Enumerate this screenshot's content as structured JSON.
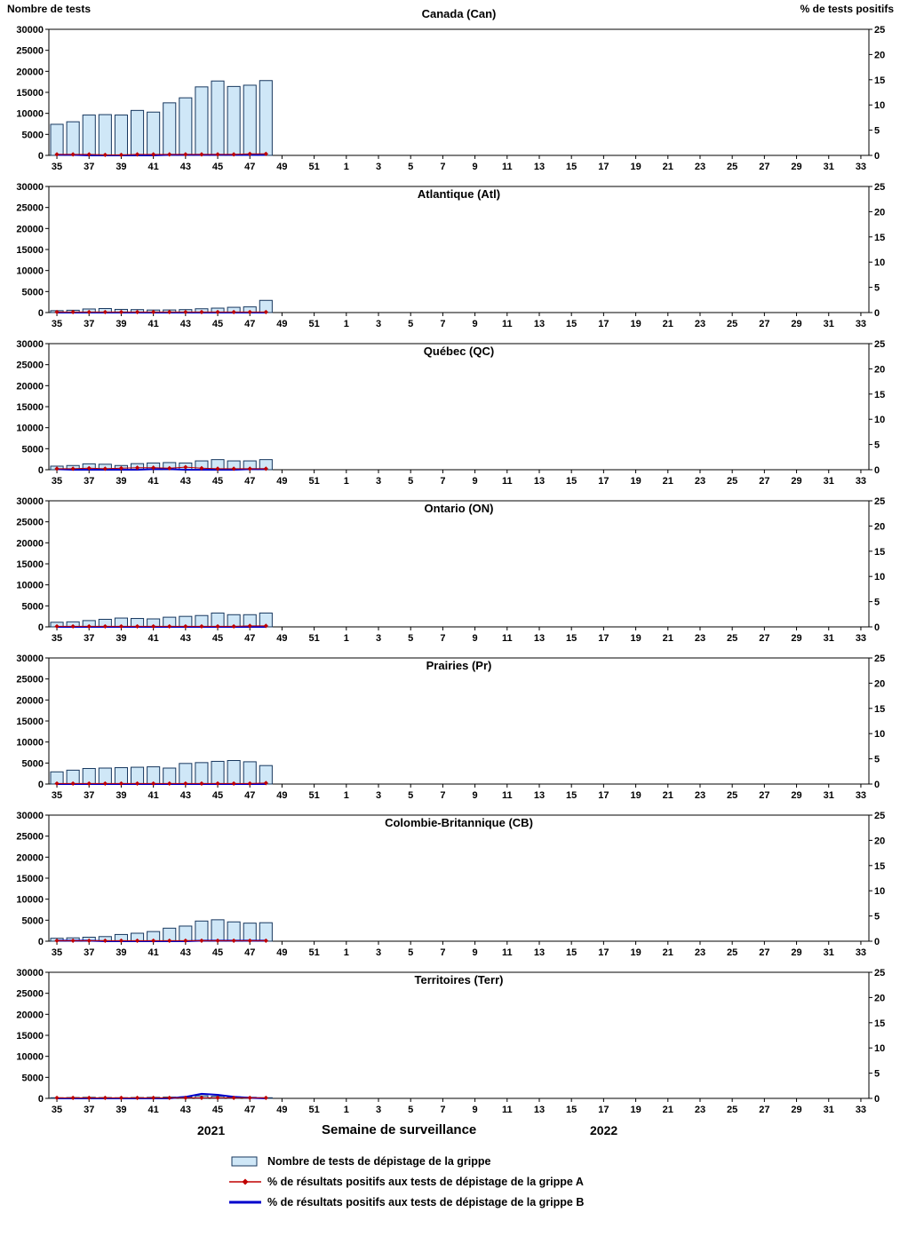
{
  "left_axis_title": "Nombre de tests",
  "right_axis_title": "% de tests positifs",
  "footer": {
    "year_left": "2021",
    "x_axis_title": "Semaine de surveillance",
    "year_right": "2022"
  },
  "colors": {
    "bar_fill": "#cfe7f7",
    "bar_border": "#17375e",
    "flu_a": "#c00000",
    "flu_b": "#0000cc",
    "axis": "#000000"
  },
  "axes": {
    "left_ticks": [
      0,
      5000,
      10000,
      15000,
      20000,
      25000,
      30000
    ],
    "left_max": 30000,
    "right_ticks": [
      0,
      5,
      10,
      15,
      20,
      25
    ],
    "right_max": 25,
    "x_tick_labels": [
      "35",
      "37",
      "39",
      "41",
      "43",
      "45",
      "47",
      "49",
      "51",
      "1",
      "3",
      "5",
      "7",
      "9",
      "11",
      "13",
      "15",
      "17",
      "19",
      "21",
      "23",
      "25",
      "27",
      "29",
      "31",
      "33"
    ],
    "n_slots": 51,
    "grid": false
  },
  "legend": [
    {
      "label": "Nombre de tests de dépistage de la grippe",
      "type": "bar"
    },
    {
      "label": "% de résultats positifs aux tests de dépistage de la grippe A",
      "type": "line-diamond"
    },
    {
      "label": "% de résultats positifs aux tests de dépistage de la grippe B",
      "type": "line"
    }
  ],
  "chart_data": [
    {
      "id": "canada",
      "type": "bar",
      "title": "Canada (Can)",
      "ylim_left": [
        0,
        30000
      ],
      "ylim_right": [
        0,
        25
      ],
      "weeks": [
        35,
        36,
        37,
        38,
        39,
        40,
        41,
        42,
        43,
        44,
        45,
        46,
        47,
        48
      ],
      "tests": [
        7400,
        8000,
        9600,
        9700,
        9600,
        10700,
        10300,
        12500,
        13700,
        16300,
        17700,
        16400,
        16700,
        17800
      ],
      "pct_flu_a": [
        0.2,
        0.2,
        0.2,
        0.1,
        0.1,
        0.2,
        0.2,
        0.2,
        0.2,
        0.2,
        0.2,
        0.2,
        0.3,
        0.3
      ],
      "pct_flu_b": [
        0.1,
        0.1,
        0,
        0,
        0,
        0,
        0,
        0.1,
        0.1,
        0.1,
        0.1,
        0.1,
        0.1,
        0.1
      ]
    },
    {
      "id": "atlantique",
      "type": "bar",
      "title": "Atlantique (Atl)",
      "ylim_left": [
        0,
        30000
      ],
      "ylim_right": [
        0,
        25
      ],
      "weeks": [
        35,
        36,
        37,
        38,
        39,
        40,
        41,
        42,
        43,
        44,
        45,
        46,
        47,
        48
      ],
      "tests": [
        450,
        550,
        850,
        950,
        750,
        700,
        600,
        620,
        700,
        900,
        1050,
        1250,
        1350,
        2900
      ],
      "pct_flu_a": [
        0.1,
        0.1,
        0.1,
        0.1,
        0.1,
        0.1,
        0.1,
        0.1,
        0.1,
        0.1,
        0.1,
        0.1,
        0.1,
        0.1
      ],
      "pct_flu_b": [
        0,
        0,
        0,
        0,
        0,
        0,
        0,
        0,
        0,
        0,
        0,
        0,
        0,
        0
      ]
    },
    {
      "id": "quebec",
      "type": "bar",
      "title": "Québec (QC)",
      "ylim_left": [
        0,
        30000
      ],
      "ylim_right": [
        0,
        25
      ],
      "weeks": [
        35,
        36,
        37,
        38,
        39,
        40,
        41,
        42,
        43,
        44,
        45,
        46,
        47,
        48
      ],
      "tests": [
        850,
        1000,
        1400,
        1300,
        1000,
        1450,
        1600,
        1700,
        1600,
        2100,
        2400,
        2100,
        2100,
        2400
      ],
      "pct_flu_a": [
        0.2,
        0.2,
        0.3,
        0.2,
        0.3,
        0.4,
        0.4,
        0.3,
        0.5,
        0.3,
        0.2,
        0.2,
        0.2,
        0.2
      ],
      "pct_flu_b": [
        0.1,
        0,
        0,
        0,
        0,
        0,
        0.1,
        0.1,
        0,
        0,
        0,
        0,
        0.1,
        0.1
      ]
    },
    {
      "id": "ontario",
      "type": "bar",
      "title": "Ontario (ON)",
      "ylim_left": [
        0,
        30000
      ],
      "ylim_right": [
        0,
        25
      ],
      "weeks": [
        35,
        36,
        37,
        38,
        39,
        40,
        41,
        42,
        43,
        44,
        45,
        46,
        47,
        48
      ],
      "tests": [
        1100,
        1200,
        1500,
        1800,
        2100,
        2000,
        1900,
        2300,
        2500,
        2700,
        3300,
        2900,
        2900,
        3300
      ],
      "pct_flu_a": [
        0.1,
        0.1,
        0.1,
        0.1,
        0.1,
        0.1,
        0.1,
        0.1,
        0.1,
        0.1,
        0.1,
        0.1,
        0.2,
        0.2
      ],
      "pct_flu_b": [
        0,
        0,
        0,
        0,
        0,
        0,
        0,
        0,
        0,
        0,
        0,
        0,
        0,
        0
      ]
    },
    {
      "id": "prairies",
      "type": "bar",
      "title": "Prairies (Pr)",
      "ylim_left": [
        0,
        30000
      ],
      "ylim_right": [
        0,
        25
      ],
      "weeks": [
        35,
        36,
        37,
        38,
        39,
        40,
        41,
        42,
        43,
        44,
        45,
        46,
        47,
        48
      ],
      "tests": [
        2900,
        3300,
        3700,
        3800,
        3900,
        4000,
        4100,
        3800,
        4900,
        5100,
        5400,
        5600,
        5300,
        4400
      ],
      "pct_flu_a": [
        0.1,
        0.1,
        0.1,
        0.1,
        0.1,
        0.1,
        0.1,
        0.1,
        0.1,
        0.1,
        0.1,
        0.1,
        0.1,
        0.2
      ],
      "pct_flu_b": [
        0,
        0,
        0,
        0,
        0,
        0,
        0,
        0,
        0,
        0,
        0,
        0,
        0,
        0
      ]
    },
    {
      "id": "colombie-britannique",
      "type": "bar",
      "title": "Colombie-Britannique (CB)",
      "ylim_left": [
        0,
        30000
      ],
      "ylim_right": [
        0,
        25
      ],
      "weeks": [
        35,
        36,
        37,
        38,
        39,
        40,
        41,
        42,
        43,
        44,
        45,
        46,
        47,
        48
      ],
      "tests": [
        700,
        800,
        950,
        1100,
        1600,
        1900,
        2300,
        3100,
        3600,
        4800,
        5100,
        4600,
        4300,
        4400
      ],
      "pct_flu_a": [
        0.1,
        0.1,
        0.1,
        0.1,
        0.1,
        0.1,
        0.1,
        0.1,
        0.1,
        0.1,
        0.1,
        0.1,
        0.1,
        0.1
      ],
      "pct_flu_b": [
        0.1,
        0.1,
        0.1,
        0,
        0,
        0,
        0,
        0,
        0,
        0.1,
        0.1,
        0.1,
        0.1,
        0.1
      ]
    },
    {
      "id": "territoires",
      "type": "bar",
      "title": "Territoires (Terr)",
      "ylim_left": [
        0,
        30000
      ],
      "ylim_right": [
        0,
        25
      ],
      "weeks": [
        35,
        36,
        37,
        38,
        39,
        40,
        41,
        42,
        43,
        44,
        45,
        46,
        47,
        48
      ],
      "tests": [
        150,
        200,
        250,
        200,
        150,
        200,
        250,
        300,
        350,
        600,
        500,
        350,
        250,
        150
      ],
      "pct_flu_a": [
        0.1,
        0.1,
        0.1,
        0.1,
        0.1,
        0.1,
        0.1,
        0.1,
        0.1,
        0.1,
        0.1,
        0.1,
        0.1,
        0.1
      ],
      "pct_flu_b": [
        0,
        0,
        0,
        0,
        0,
        0,
        0,
        0,
        0.3,
        0.9,
        0.7,
        0.3,
        0.1,
        0
      ]
    }
  ]
}
